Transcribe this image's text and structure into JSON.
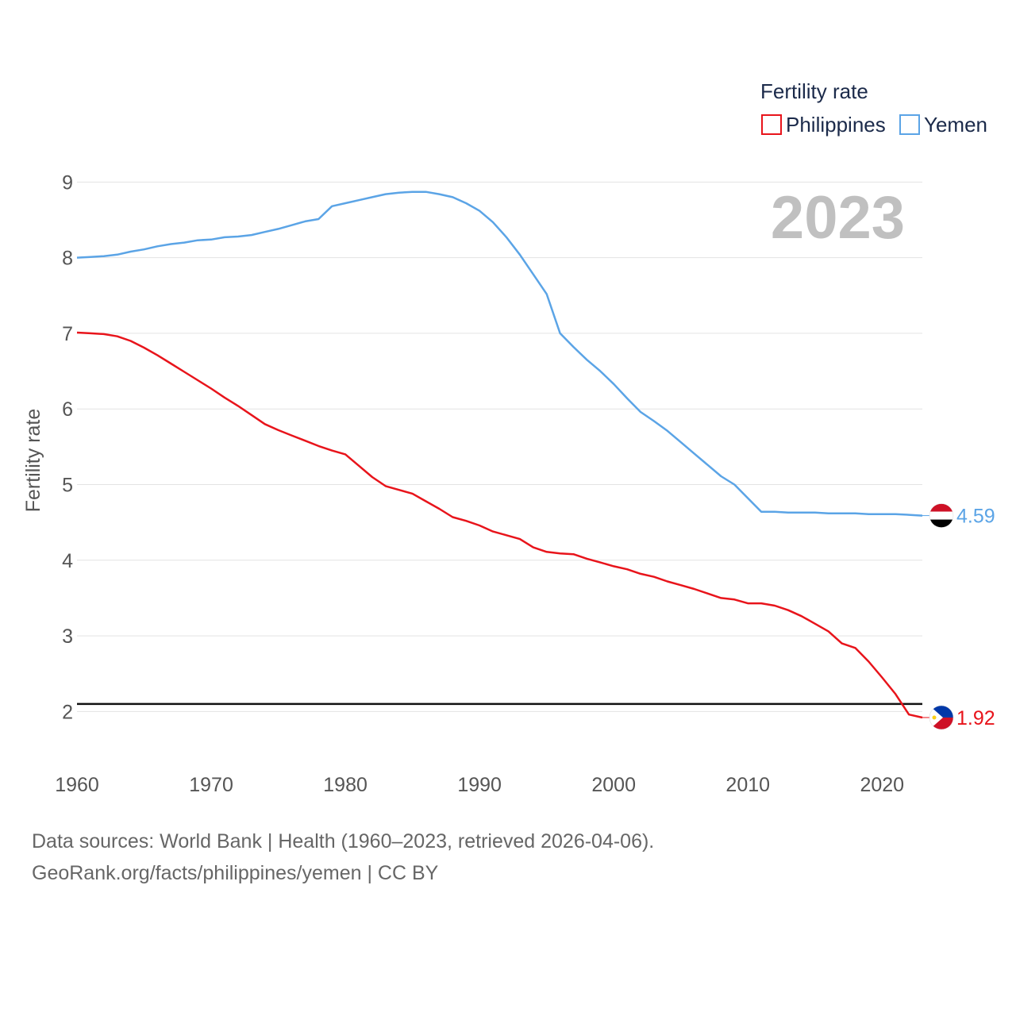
{
  "chart_data": {
    "type": "line",
    "legend_title": "Fertility rate",
    "ylabel": "Fertility rate",
    "year_label": "2023",
    "x_ticks": [
      1960,
      1970,
      1980,
      1990,
      2000,
      2010,
      2020
    ],
    "y_ticks": [
      2,
      3,
      4,
      5,
      6,
      7,
      8,
      9
    ],
    "xlim": [
      1960,
      2023
    ],
    "ylim": [
      1.5,
      9.35
    ],
    "reference_line": 2.1,
    "series": [
      {
        "name": "Philippines",
        "color": "#e8141b",
        "end_label": "1.92",
        "flag": "philippines-flag",
        "x": [
          1960,
          1961,
          1962,
          1963,
          1964,
          1965,
          1966,
          1967,
          1968,
          1969,
          1970,
          1971,
          1972,
          1973,
          1974,
          1975,
          1976,
          1977,
          1978,
          1979,
          1980,
          1981,
          1982,
          1983,
          1984,
          1985,
          1986,
          1987,
          1988,
          1989,
          1990,
          1991,
          1992,
          1993,
          1994,
          1995,
          1996,
          1997,
          1998,
          1999,
          2000,
          2001,
          2002,
          2003,
          2004,
          2005,
          2006,
          2007,
          2008,
          2009,
          2010,
          2011,
          2012,
          2013,
          2014,
          2015,
          2016,
          2017,
          2018,
          2019,
          2020,
          2021,
          2022,
          2023
        ],
        "values": [
          7.01,
          7.0,
          6.99,
          6.96,
          6.9,
          6.81,
          6.71,
          6.6,
          6.49,
          6.38,
          6.27,
          6.15,
          6.04,
          5.92,
          5.8,
          5.72,
          5.65,
          5.58,
          5.51,
          5.45,
          5.4,
          5.25,
          5.1,
          4.98,
          4.93,
          4.88,
          4.78,
          4.68,
          4.57,
          4.52,
          4.46,
          4.38,
          4.33,
          4.28,
          4.17,
          4.11,
          4.09,
          4.08,
          4.02,
          3.97,
          3.92,
          3.88,
          3.82,
          3.78,
          3.72,
          3.67,
          3.62,
          3.56,
          3.5,
          3.48,
          3.43,
          3.43,
          3.4,
          3.34,
          3.26,
          3.16,
          3.06,
          2.9,
          2.84,
          2.66,
          2.45,
          2.23,
          1.96,
          1.92
        ]
      },
      {
        "name": "Yemen",
        "color": "#5ba4e6",
        "end_label": "4.59",
        "flag": "yemen-flag",
        "x": [
          1960,
          1961,
          1962,
          1963,
          1964,
          1965,
          1966,
          1967,
          1968,
          1969,
          1970,
          1971,
          1972,
          1973,
          1974,
          1975,
          1976,
          1977,
          1978,
          1979,
          1980,
          1981,
          1982,
          1983,
          1984,
          1985,
          1986,
          1987,
          1988,
          1989,
          1990,
          1991,
          1992,
          1993,
          1994,
          1995,
          1996,
          1997,
          1998,
          1999,
          2000,
          2001,
          2002,
          2003,
          2004,
          2005,
          2006,
          2007,
          2008,
          2009,
          2010,
          2011,
          2012,
          2013,
          2014,
          2015,
          2016,
          2017,
          2018,
          2019,
          2020,
          2021,
          2022,
          2023
        ],
        "values": [
          8.0,
          8.01,
          8.02,
          8.04,
          8.08,
          8.11,
          8.15,
          8.18,
          8.2,
          8.23,
          8.24,
          8.27,
          8.28,
          8.3,
          8.34,
          8.38,
          8.43,
          8.48,
          8.51,
          8.68,
          8.72,
          8.76,
          8.8,
          8.84,
          8.86,
          8.87,
          8.87,
          8.84,
          8.8,
          8.72,
          8.62,
          8.47,
          8.27,
          8.04,
          7.78,
          7.52,
          7.0,
          6.82,
          6.65,
          6.5,
          6.33,
          6.14,
          5.96,
          5.84,
          5.71,
          5.56,
          5.41,
          5.26,
          5.11,
          5.0,
          4.82,
          4.64,
          4.64,
          4.63,
          4.63,
          4.63,
          4.62,
          4.62,
          4.62,
          4.61,
          4.61,
          4.61,
          4.6,
          4.59
        ]
      }
    ]
  },
  "footer": {
    "source_line1": "Data sources: World Bank | Health (1960–2023, retrieved 2026-04-06).",
    "source_line2": "GeoRank.org/facts/philippines/yemen | CC BY"
  }
}
